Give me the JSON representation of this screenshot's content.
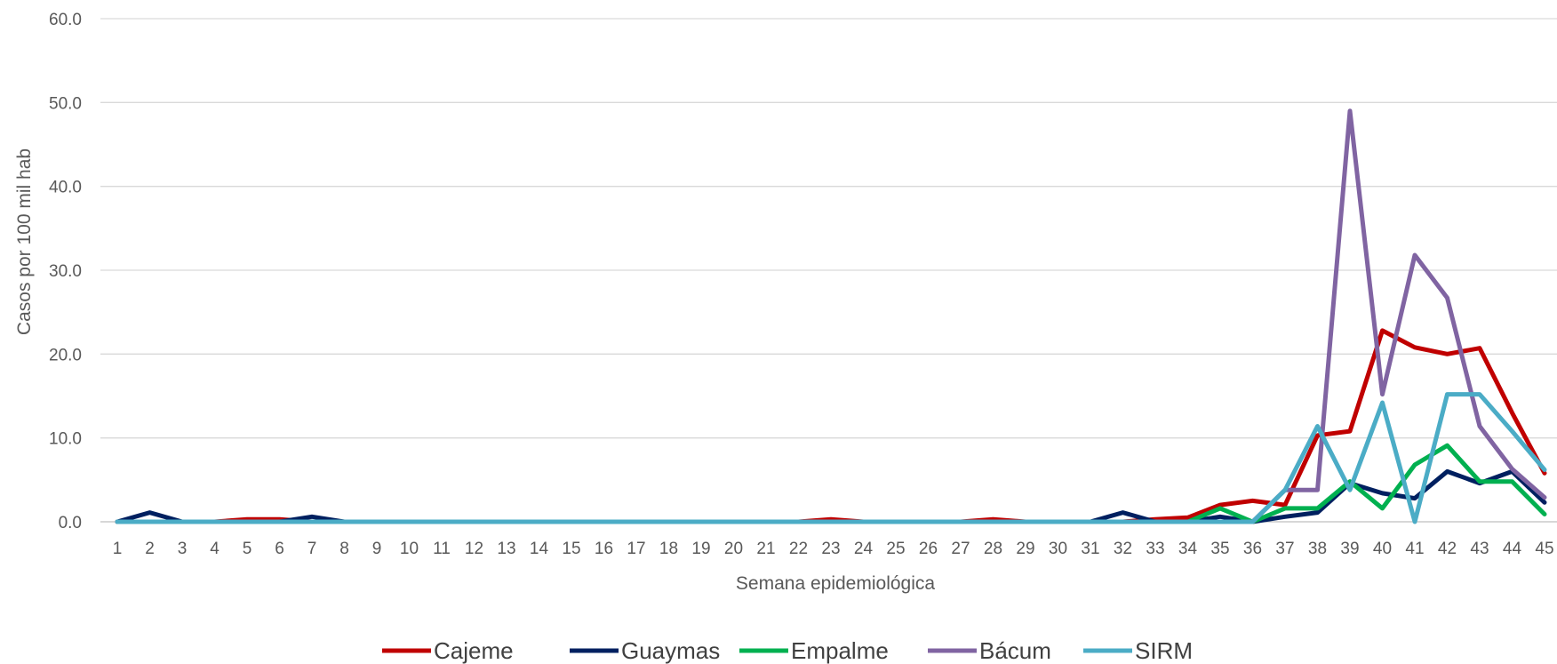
{
  "chart_data": {
    "type": "line",
    "title": "",
    "xlabel": "Semana epidemiológica",
    "ylabel": "Casos por 100 mil hab",
    "ylim": [
      0,
      60
    ],
    "yticks": [
      "0.0",
      "10.0",
      "20.0",
      "30.0",
      "40.0",
      "50.0",
      "60.0"
    ],
    "grid": true,
    "legend_position": "bottom",
    "categories": [
      "1",
      "2",
      "3",
      "4",
      "5",
      "6",
      "7",
      "8",
      "9",
      "10",
      "11",
      "12",
      "13",
      "14",
      "15",
      "16",
      "17",
      "18",
      "19",
      "20",
      "21",
      "22",
      "23",
      "24",
      "25",
      "26",
      "27",
      "28",
      "29",
      "30",
      "31",
      "32",
      "33",
      "34",
      "35",
      "36",
      "37",
      "38",
      "39",
      "40",
      "41",
      "42",
      "43",
      "44",
      "45"
    ],
    "series": [
      {
        "name": "Cajeme",
        "color": "#C00000",
        "values": [
          0,
          0,
          0,
          0,
          0.3,
          0.3,
          0,
          0,
          0,
          0,
          0,
          0,
          0,
          0,
          0,
          0,
          0,
          0,
          0,
          0,
          0,
          0,
          0.3,
          0,
          0,
          0,
          0,
          0.3,
          0,
          0,
          0,
          0,
          0.3,
          0.5,
          2.0,
          2.5,
          2.0,
          10.3,
          10.8,
          22.8,
          20.8,
          20.0,
          20.7,
          13.0,
          5.8
        ]
      },
      {
        "name": "Guaymas",
        "color": "#002060",
        "values": [
          0,
          1.1,
          0,
          0,
          0,
          0,
          0.6,
          0,
          0,
          0,
          0,
          0,
          0,
          0,
          0,
          0,
          0,
          0,
          0,
          0,
          0,
          0,
          0,
          0,
          0,
          0,
          0,
          0,
          0,
          0,
          0,
          1.1,
          0,
          0,
          0.6,
          0,
          0.6,
          1.1,
          4.6,
          3.4,
          2.8,
          6.0,
          4.6,
          6.0,
          2.3
        ]
      },
      {
        "name": "Empalme",
        "color": "#00B050",
        "values": [
          0,
          0,
          0,
          0,
          0,
          0,
          0,
          0,
          0,
          0,
          0,
          0,
          0,
          0,
          0,
          0,
          0,
          0,
          0,
          0,
          0,
          0,
          0,
          0,
          0,
          0,
          0,
          0,
          0,
          0,
          0,
          0,
          0,
          0,
          1.6,
          0,
          1.6,
          1.6,
          4.8,
          1.6,
          6.8,
          9.1,
          4.8,
          4.8,
          0.9
        ]
      },
      {
        "name": "Bácum",
        "color": "#8064A2",
        "values": [
          0,
          0,
          0,
          0,
          0,
          0,
          0,
          0,
          0,
          0,
          0,
          0,
          0,
          0,
          0,
          0,
          0,
          0,
          0,
          0,
          0,
          0,
          0,
          0,
          0,
          0,
          0,
          0,
          0,
          0,
          0,
          0,
          0,
          0,
          0,
          0,
          3.8,
          3.8,
          49.0,
          15.2,
          31.8,
          26.7,
          11.4,
          6.3,
          2.9
        ]
      },
      {
        "name": "SIRM",
        "color": "#4BACC6",
        "values": [
          0,
          0,
          0,
          0,
          0,
          0,
          0,
          0,
          0,
          0,
          0,
          0,
          0,
          0,
          0,
          0,
          0,
          0,
          0,
          0,
          0,
          0,
          0,
          0,
          0,
          0,
          0,
          0,
          0,
          0,
          0,
          0,
          0,
          0,
          0,
          0,
          3.8,
          11.4,
          3.8,
          14.2,
          0,
          15.2,
          15.2,
          10.8,
          6.2
        ]
      }
    ]
  }
}
